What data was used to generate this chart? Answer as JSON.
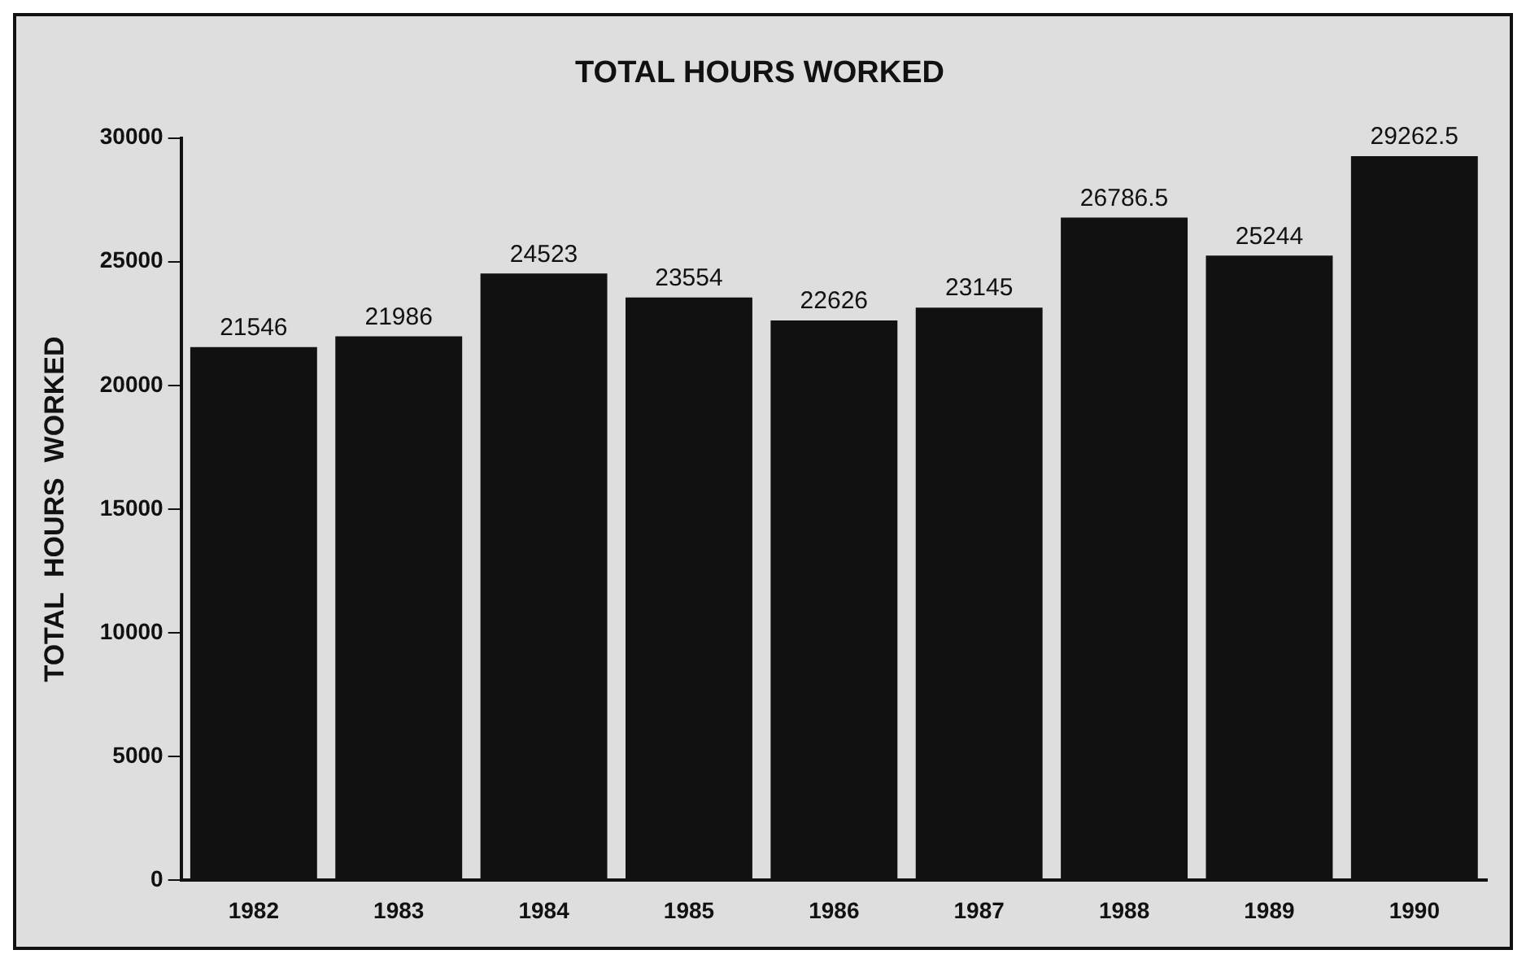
{
  "chart_data": {
    "type": "bar",
    "title": "TOTAL HOURS WORKED",
    "ylabel": "TOTAL  HOURS  WORKED",
    "categories": [
      "1982",
      "1983",
      "1984",
      "1985",
      "1986",
      "1987",
      "1988",
      "1989",
      "1990"
    ],
    "values": [
      21546,
      21986,
      24523,
      23554,
      22626,
      23145,
      26786.5,
      25244,
      29262.5
    ],
    "color": "#111111",
    "ylim": [
      0,
      30000
    ],
    "yticks": [
      0,
      5000,
      10000,
      15000,
      20000,
      25000,
      30000
    ],
    "grid": false,
    "legend": false,
    "data_labels": true
  }
}
